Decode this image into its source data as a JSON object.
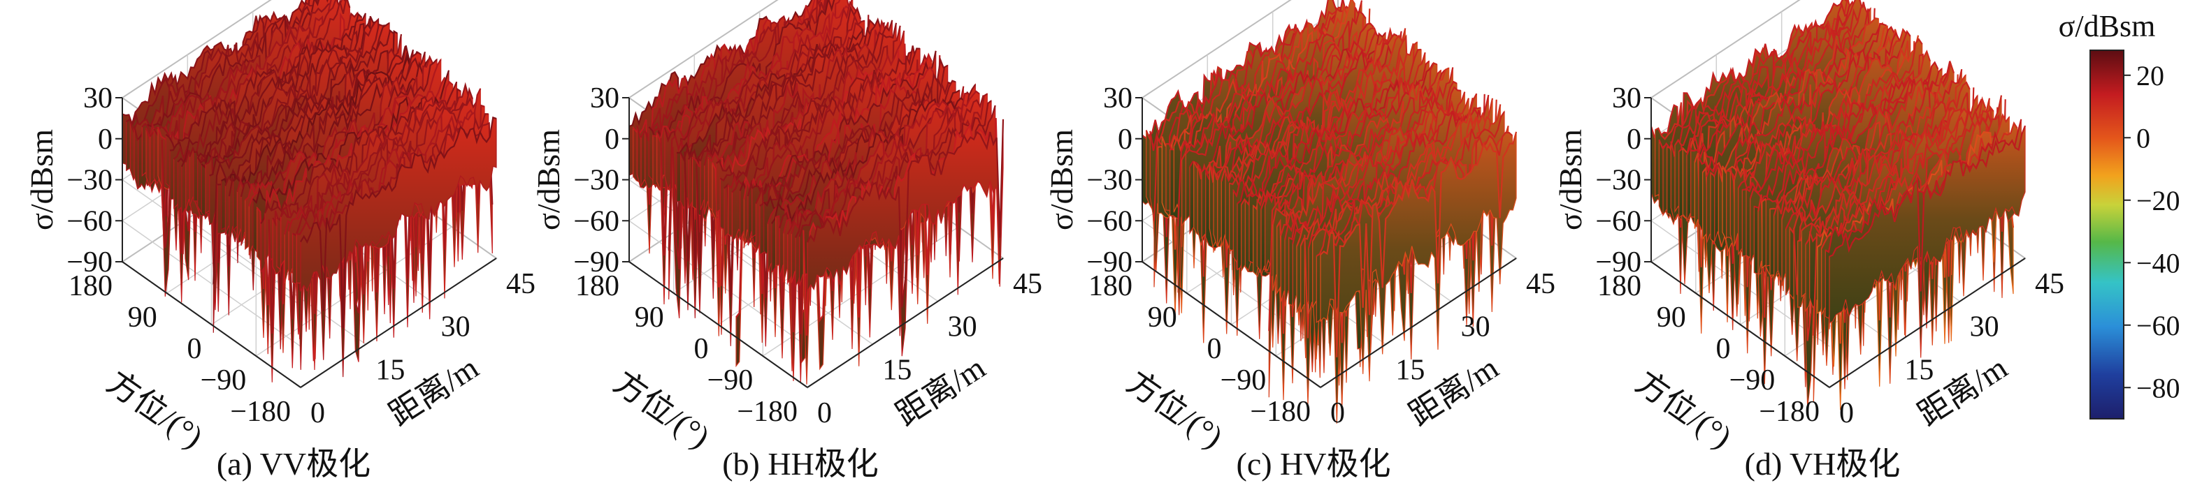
{
  "chart_data": [
    {
      "type": "surface3d",
      "caption": "(a) VV极化",
      "zlabel": "σ/dBsm",
      "zticks": [
        "30",
        "0",
        "−30",
        "−60",
        "−90"
      ],
      "zlim": [
        -90,
        30
      ],
      "azimuth_label": "方位/(°)",
      "azimuth_ticks": [
        "180",
        "90",
        "0",
        "−90",
        "−180"
      ],
      "azimuth_range": [
        -180,
        180
      ],
      "range_label": "距离/m",
      "range_ticks": [
        "0",
        "15",
        "30",
        "45"
      ],
      "range_lim": [
        0,
        45
      ],
      "surface": {
        "mean_db": 15,
        "min_db": -80,
        "max_db": 27,
        "ridges_along_range": 4
      }
    },
    {
      "type": "surface3d",
      "caption": "(b) HH极化",
      "zlabel": "σ/dBsm",
      "zticks": [
        "30",
        "0",
        "−30",
        "−60",
        "−90"
      ],
      "zlim": [
        -90,
        30
      ],
      "azimuth_label": "方位/(°)",
      "azimuth_ticks": [
        "180",
        "90",
        "0",
        "−90",
        "−180"
      ],
      "azimuth_range": [
        -180,
        180
      ],
      "range_label": "距离/m",
      "range_ticks": [
        "0",
        "15",
        "30",
        "45"
      ],
      "range_lim": [
        0,
        45
      ],
      "surface": {
        "mean_db": 14,
        "min_db": -80,
        "max_db": 27,
        "ridges_along_range": 4
      }
    },
    {
      "type": "surface3d",
      "caption": "(c) HV极化",
      "zlabel": "σ/dBsm",
      "zticks": [
        "30",
        "0",
        "−30",
        "−60",
        "−90"
      ],
      "zlim": [
        -90,
        30
      ],
      "azimuth_label": "方位/(°)",
      "azimuth_ticks": [
        "180",
        "90",
        "0",
        "−90",
        "−180"
      ],
      "azimuth_range": [
        -180,
        180
      ],
      "range_label": "距离/m",
      "range_ticks": [
        "0",
        "15",
        "30",
        "45"
      ],
      "range_lim": [
        0,
        45
      ],
      "surface": {
        "mean_db": 5,
        "min_db": -80,
        "max_db": 25,
        "ridges_along_range": 5
      }
    },
    {
      "type": "surface3d",
      "caption": "(d) VH极化",
      "zlabel": "σ/dBsm",
      "zticks": [
        "30",
        "0",
        "−30",
        "−60",
        "−90"
      ],
      "zlim": [
        -90,
        30
      ],
      "azimuth_label": "方位/(°)",
      "azimuth_ticks": [
        "180",
        "90",
        "0",
        "−90",
        "−180"
      ],
      "azimuth_range": [
        -180,
        180
      ],
      "range_label": "距离/m",
      "range_ticks": [
        "0",
        "15",
        "30",
        "45"
      ],
      "range_lim": [
        0,
        45
      ],
      "surface": {
        "mean_db": 5,
        "min_db": -80,
        "max_db": 25,
        "ridges_along_range": 5
      }
    }
  ],
  "colorbar": {
    "title": "σ/dBsm",
    "ticks": [
      "20",
      "0",
      "−20",
      "−40",
      "−60",
      "−80"
    ],
    "tick_values": [
      20,
      0,
      -20,
      -40,
      -60,
      -80
    ],
    "range": [
      -90,
      28
    ],
    "colormap": "jet"
  }
}
